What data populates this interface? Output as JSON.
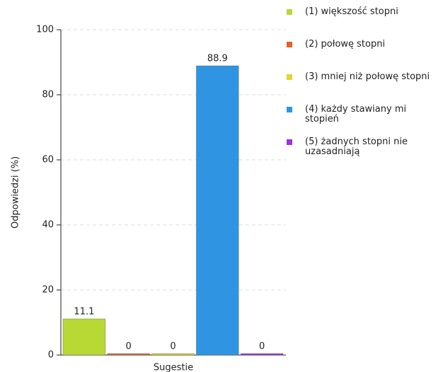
{
  "chart_data": {
    "type": "bar",
    "y_label": "Odpowiedzi (%)",
    "categories": [
      "Sugestie"
    ],
    "series": [
      {
        "name": "(1) większość stopni",
        "color": "#b8d934",
        "values": [
          11.1
        ]
      },
      {
        "name": "(2) połowę stopni",
        "color": "#e8602c",
        "values": [
          0
        ]
      },
      {
        "name": "(3) mniej niż połowę stopni",
        "color": "#e3d62c",
        "values": [
          0
        ]
      },
      {
        "name": "(4) każdy stawiany mi stopień",
        "color": "#2f95e3",
        "values": [
          88.9
        ]
      },
      {
        "name": "(5) żadnych stopni nie uzasadniają",
        "color": "#a030e0",
        "values": [
          0
        ]
      }
    ],
    "ylim": [
      0,
      100
    ],
    "yticks": [
      0,
      20,
      40,
      60,
      80,
      100
    ],
    "grid": true
  }
}
